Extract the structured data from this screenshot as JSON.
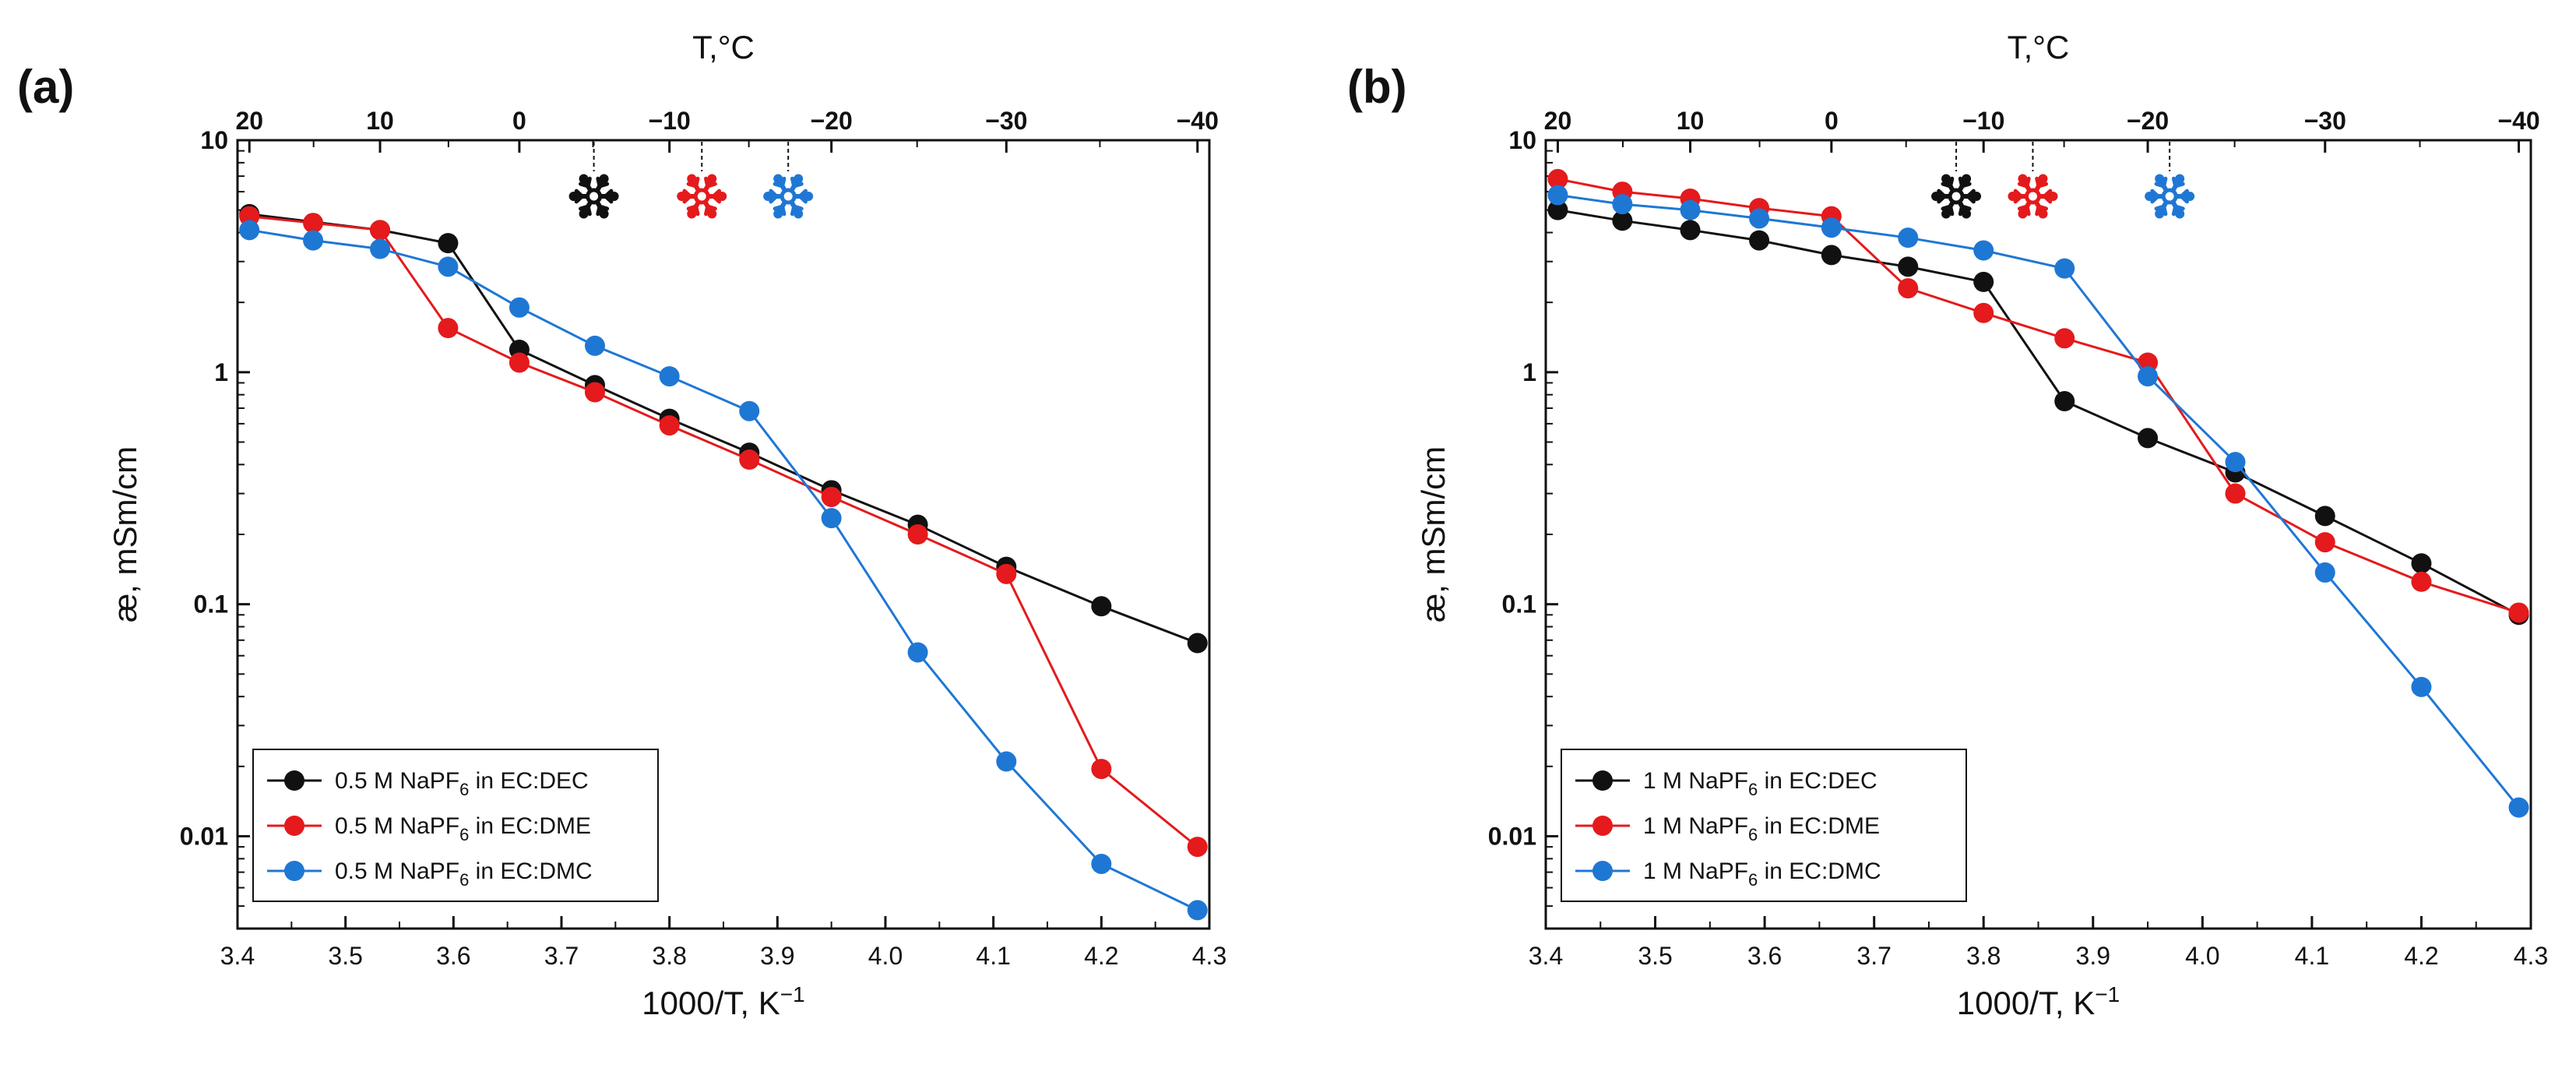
{
  "chart_data": [
    {
      "type": "line",
      "panel_label": "(a)",
      "xlabel": "1000/T, K",
      "xlabel_sup": "−1",
      "ylabel": "æ, mSm/cm",
      "top_xlabel": "T,°C",
      "y_scale": "log",
      "xlim": [
        3.4,
        4.3
      ],
      "ylim": [
        0.004,
        10
      ],
      "x_ticks": [
        "3.4",
        "3.5",
        "3.6",
        "3.7",
        "3.8",
        "3.9",
        "4.0",
        "4.1",
        "4.2",
        "4.3"
      ],
      "y_ticks": [
        "10",
        "1",
        "0.1",
        "0.01"
      ],
      "top_ticks": [
        {
          "label": "20",
          "x": 3.411
        },
        {
          "label": "10",
          "x": 3.532
        },
        {
          "label": "0",
          "x": 3.661
        },
        {
          "label": "−10",
          "x": 3.8
        },
        {
          "label": "−20",
          "x": 3.95
        },
        {
          "label": "−30",
          "x": 4.112
        },
        {
          "label": "−40",
          "x": 4.289
        }
      ],
      "freeze_markers": [
        {
          "icon": "snowflake-icon",
          "color": "#111111",
          "x": 3.73
        },
        {
          "icon": "snowflake-icon",
          "color": "#e41a1c",
          "x": 3.83
        },
        {
          "icon": "snowflake-icon",
          "color": "#1f77d4",
          "x": 3.91
        }
      ],
      "legend_position": "bottom-left",
      "series": [
        {
          "name": "0.5 M NaPF",
          "sub": "6",
          "suffix": " in EC:DEC",
          "color": "#111111",
          "x": [
            3.411,
            3.532,
            3.595,
            3.661,
            3.731,
            3.8,
            3.874,
            3.95,
            4.03,
            4.112,
            4.2,
            4.289
          ],
          "y": [
            4.8,
            4.1,
            3.6,
            1.25,
            0.88,
            0.63,
            0.45,
            0.31,
            0.22,
            0.145,
            0.098,
            0.068
          ]
        },
        {
          "name": "0.5 M NaPF",
          "sub": "6",
          "suffix": " in EC:DME",
          "color": "#e41a1c",
          "x": [
            3.411,
            3.47,
            3.532,
            3.595,
            3.661,
            3.731,
            3.8,
            3.874,
            3.95,
            4.03,
            4.112,
            4.2,
            4.289
          ],
          "y": [
            4.7,
            4.4,
            4.1,
            1.55,
            1.1,
            0.82,
            0.59,
            0.42,
            0.29,
            0.2,
            0.135,
            0.0195,
            0.009
          ]
        },
        {
          "name": "0.5 M NaPF",
          "sub": "6",
          "suffix": " in EC:DMC",
          "color": "#1f77d4",
          "x": [
            3.411,
            3.47,
            3.532,
            3.595,
            3.661,
            3.731,
            3.8,
            3.874,
            3.95,
            4.03,
            4.112,
            4.2,
            4.289
          ],
          "y": [
            4.1,
            3.7,
            3.4,
            2.85,
            1.9,
            1.3,
            0.96,
            0.68,
            0.235,
            0.062,
            0.021,
            0.0076,
            0.0048
          ]
        }
      ]
    },
    {
      "type": "line",
      "panel_label": "(b)",
      "xlabel": "1000/T, K",
      "xlabel_sup": "−1",
      "ylabel": "æ, mSm/cm",
      "top_xlabel": "T,°C",
      "y_scale": "log",
      "xlim": [
        3.4,
        4.3
      ],
      "ylim": [
        0.004,
        10
      ],
      "x_ticks": [
        "3.4",
        "3.5",
        "3.6",
        "3.7",
        "3.8",
        "3.9",
        "4.0",
        "4.1",
        "4.2",
        "4.3"
      ],
      "y_ticks": [
        "10",
        "1",
        "0.1",
        "0.01"
      ],
      "top_ticks": [
        {
          "label": "20",
          "x": 3.411
        },
        {
          "label": "10",
          "x": 3.532
        },
        {
          "label": "0",
          "x": 3.661
        },
        {
          "label": "−10",
          "x": 3.8
        },
        {
          "label": "−20",
          "x": 3.95
        },
        {
          "label": "−30",
          "x": 4.112
        },
        {
          "label": "−40",
          "x": 4.289
        }
      ],
      "freeze_markers": [
        {
          "icon": "snowflake-icon",
          "color": "#111111",
          "x": 3.775
        },
        {
          "icon": "snowflake-icon",
          "color": "#e41a1c",
          "x": 3.845
        },
        {
          "icon": "snowflake-icon",
          "color": "#1f77d4",
          "x": 3.97
        }
      ],
      "legend_position": "bottom-left",
      "series": [
        {
          "name": "1 M NaPF",
          "sub": "6",
          "suffix": " in EC:DEC",
          "color": "#111111",
          "x": [
            3.411,
            3.47,
            3.532,
            3.595,
            3.661,
            3.731,
            3.8,
            3.874,
            3.95,
            4.03,
            4.112,
            4.2,
            4.289
          ],
          "y": [
            5.0,
            4.5,
            4.1,
            3.7,
            3.2,
            2.85,
            2.45,
            0.75,
            0.52,
            0.37,
            0.24,
            0.15,
            0.09
          ]
        },
        {
          "name": "1 M NaPF",
          "sub": "6",
          "suffix": " in EC:DME",
          "color": "#e41a1c",
          "x": [
            3.411,
            3.47,
            3.532,
            3.595,
            3.661,
            3.731,
            3.8,
            3.874,
            3.95,
            4.03,
            4.112,
            4.2,
            4.289
          ],
          "y": [
            6.8,
            6.0,
            5.6,
            5.1,
            4.7,
            2.3,
            1.8,
            1.4,
            1.1,
            0.3,
            0.185,
            0.125,
            0.092
          ]
        },
        {
          "name": "1 M NaPF",
          "sub": "6",
          "suffix": " in EC:DMC",
          "color": "#1f77d4",
          "x": [
            3.411,
            3.47,
            3.532,
            3.595,
            3.661,
            3.731,
            3.8,
            3.874,
            3.95,
            4.03,
            4.112,
            4.2,
            4.289
          ],
          "y": [
            5.8,
            5.3,
            5.0,
            4.6,
            4.2,
            3.8,
            3.35,
            2.8,
            0.96,
            0.41,
            0.137,
            0.044,
            0.0133
          ]
        }
      ]
    }
  ]
}
